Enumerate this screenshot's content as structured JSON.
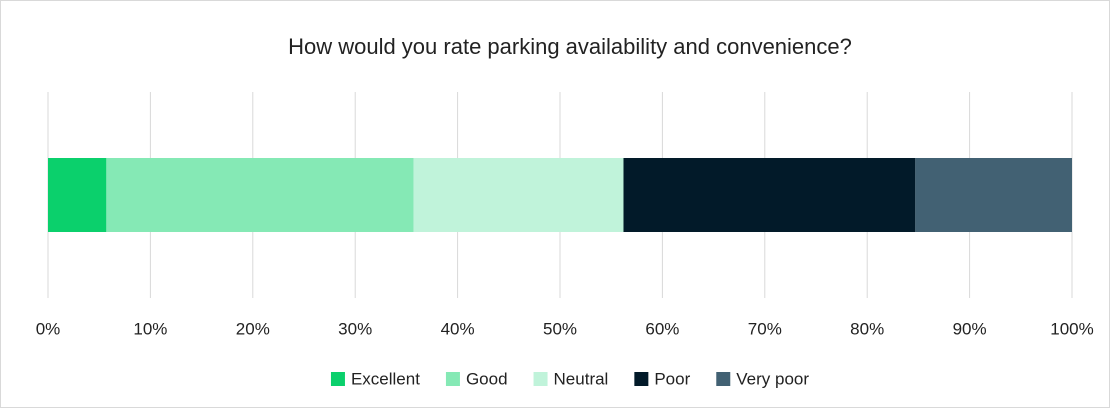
{
  "chart_data": {
    "type": "stacked-bar-horizontal",
    "title": "How would you rate parking availability and convenience?",
    "series": [
      {
        "name": "Excellent",
        "color": "#0bd06c",
        "values": [
          5.7
        ]
      },
      {
        "name": "Good",
        "color": "#85e9b5",
        "values": [
          30
        ]
      },
      {
        "name": "Neutral",
        "color": "#c0f3da",
        "values": [
          20.5
        ]
      },
      {
        "name": "Poor",
        "color": "#021a29",
        "values": [
          28.5
        ]
      },
      {
        "name": "Very poor",
        "color": "#426173",
        "values": [
          15.3
        ]
      }
    ],
    "xlim": [
      0,
      100
    ],
    "xticks": [
      {
        "value": 0,
        "label": "0%"
      },
      {
        "value": 10,
        "label": "10%"
      },
      {
        "value": 20,
        "label": "20%"
      },
      {
        "value": 30,
        "label": "30%"
      },
      {
        "value": 40,
        "label": "40%"
      },
      {
        "value": 50,
        "label": "50%"
      },
      {
        "value": 60,
        "label": "60%"
      },
      {
        "value": 70,
        "label": "70%"
      },
      {
        "value": 80,
        "label": "80%"
      },
      {
        "value": 90,
        "label": "90%"
      },
      {
        "value": 100,
        "label": "100%"
      }
    ],
    "grid": true,
    "legend": "bottom"
  }
}
